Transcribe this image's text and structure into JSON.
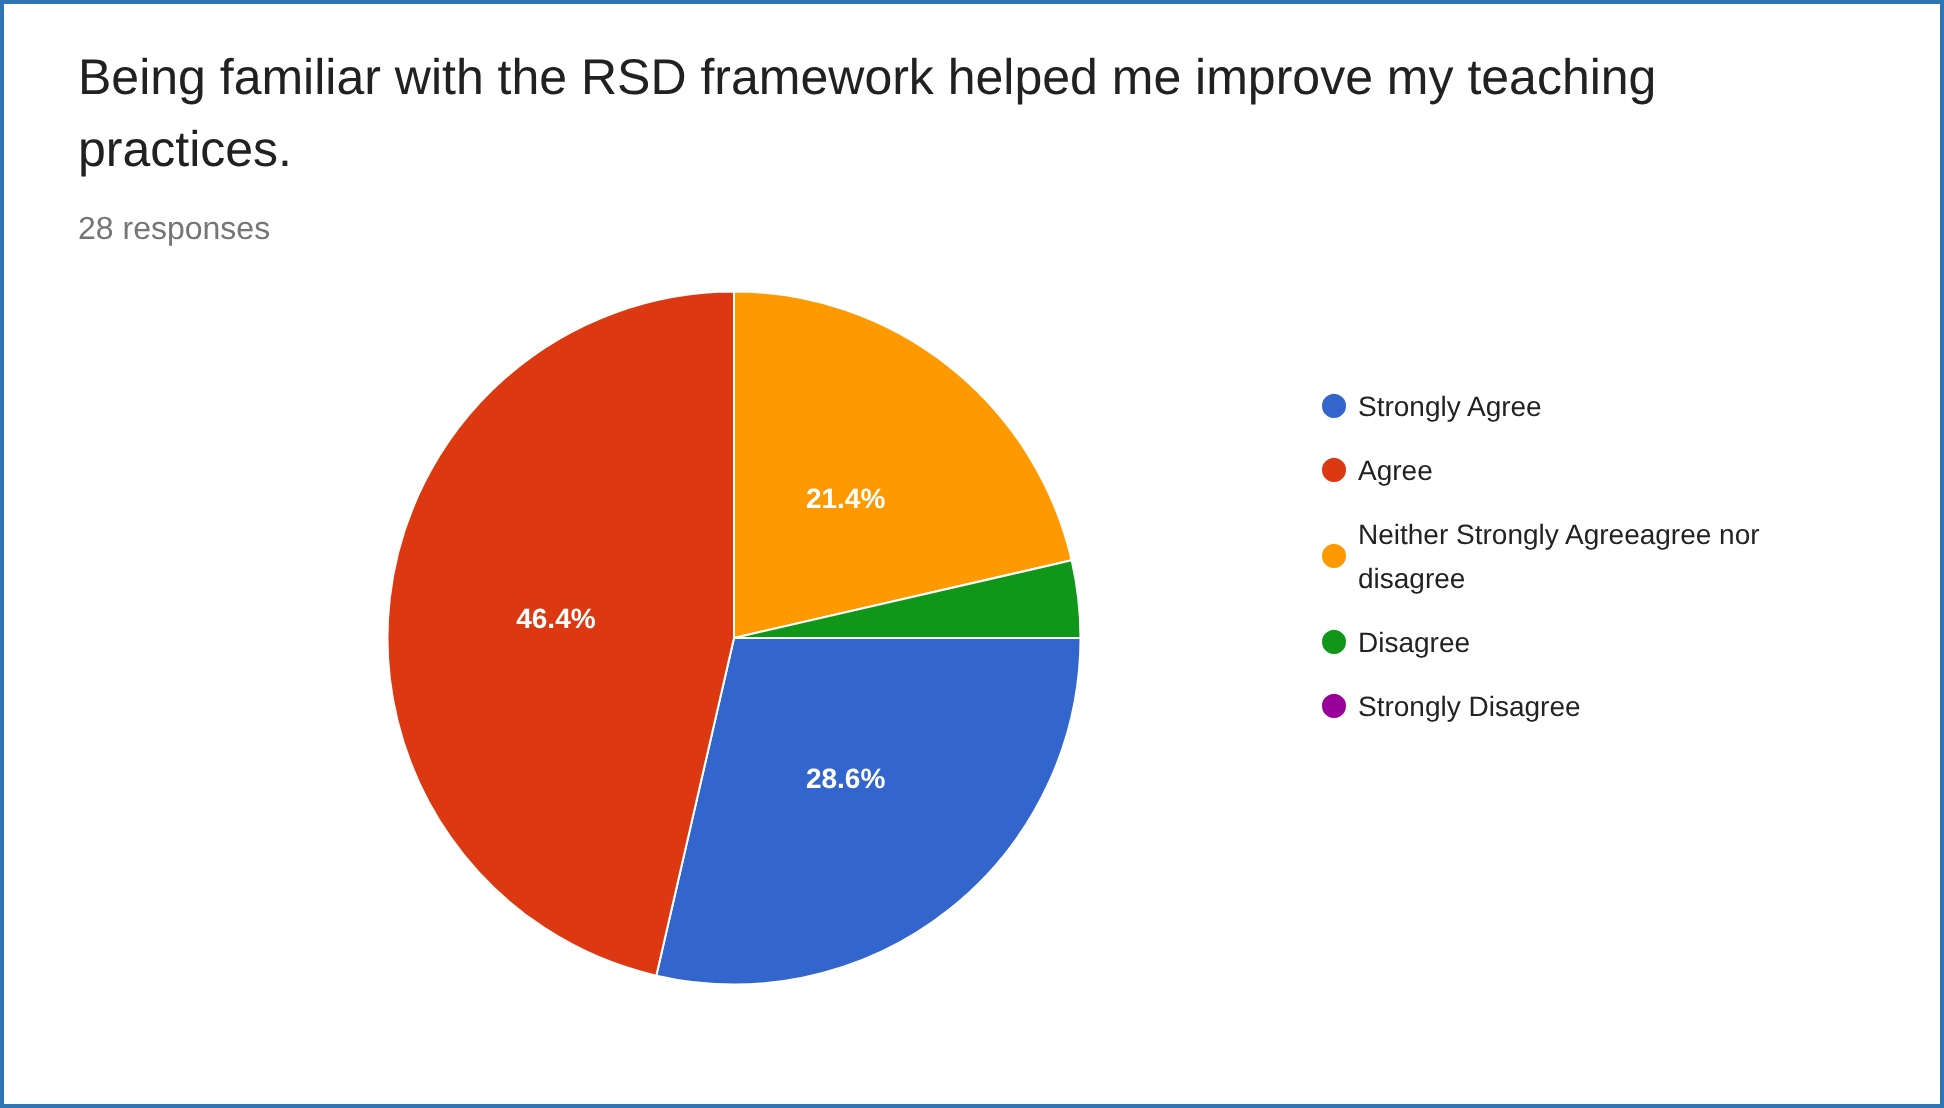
{
  "chart_data": {
    "type": "pie",
    "title": "Being familiar with the RSD framework helped me improve my teaching practices.",
    "subtitle": "28 responses",
    "categories": [
      "Strongly Agree",
      "Agree",
      "Neither Strongly Agreeagree nor disagree",
      "Disagree",
      "Strongly Disagree"
    ],
    "values": [
      28.6,
      46.4,
      21.4,
      3.6,
      0
    ],
    "colors": [
      "#3366cc",
      "#dc3912",
      "#ff9900",
      "#109618",
      "#990099"
    ],
    "value_labels": [
      "28.6%",
      "46.4%",
      "21.4%",
      null,
      null
    ],
    "legend": "right"
  }
}
